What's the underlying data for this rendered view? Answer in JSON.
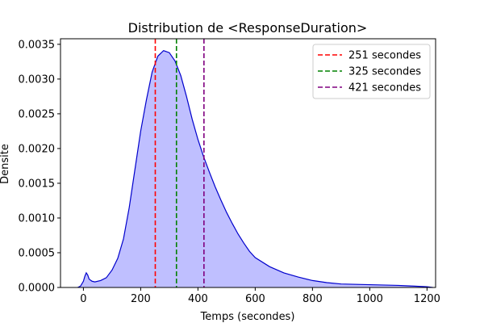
{
  "chart_data": {
    "type": "area",
    "title": "Distribution de <ResponseDuration>",
    "xlabel": "Temps (secondes)",
    "ylabel": "Densite",
    "xlim": [
      -80,
      1230
    ],
    "ylim": [
      0,
      0.00358
    ],
    "x_ticks": [
      0,
      200,
      400,
      600,
      800,
      1000,
      1200
    ],
    "x_tick_labels": [
      "0",
      "200",
      "400",
      "600",
      "800",
      "1000",
      "1200"
    ],
    "y_ticks": [
      0,
      0.0005,
      0.001,
      0.0015,
      0.002,
      0.0025,
      0.003,
      0.0035
    ],
    "y_tick_labels": [
      "0.0000",
      "0.0005",
      "0.0010",
      "0.0015",
      "0.0020",
      "0.0025",
      "0.0030",
      "0.0035"
    ],
    "grid": false,
    "legend_position": "top-right",
    "series": [
      {
        "color": "#0000cc",
        "fill": "#bfbfff",
        "x": [
          -20,
          -10,
          0,
          5,
          10,
          15,
          20,
          30,
          40,
          60,
          80,
          100,
          120,
          140,
          160,
          180,
          200,
          220,
          240,
          260,
          280,
          300,
          320,
          340,
          360,
          380,
          400,
          420,
          440,
          460,
          480,
          500,
          520,
          540,
          560,
          580,
          600,
          650,
          700,
          750,
          800,
          850,
          900,
          1000,
          1100,
          1150,
          1200,
          1220
        ],
        "y": [
          0.0,
          2e-05,
          9e-05,
          0.00016,
          0.00021,
          0.00018,
          0.00012,
          9e-05,
          8e-05,
          0.0001,
          0.00014,
          0.00025,
          0.00042,
          0.0007,
          0.00115,
          0.0017,
          0.00225,
          0.0027,
          0.0031,
          0.00333,
          0.00341,
          0.00338,
          0.00326,
          0.00305,
          0.00275,
          0.00242,
          0.00213,
          0.00188,
          0.00166,
          0.00145,
          0.00126,
          0.00108,
          0.00092,
          0.00077,
          0.00064,
          0.00052,
          0.00043,
          0.0003,
          0.00021,
          0.00015,
          0.0001,
          7e-05,
          5e-05,
          4e-05,
          3e-05,
          2e-05,
          1e-05,
          0.0
        ]
      }
    ],
    "vlines": [
      {
        "x": 251,
        "label": "251 secondes",
        "color": "#ff0000"
      },
      {
        "x": 325,
        "label": "325 secondes",
        "color": "#008000"
      },
      {
        "x": 421,
        "label": "421 secondes",
        "color": "#800080"
      }
    ]
  }
}
